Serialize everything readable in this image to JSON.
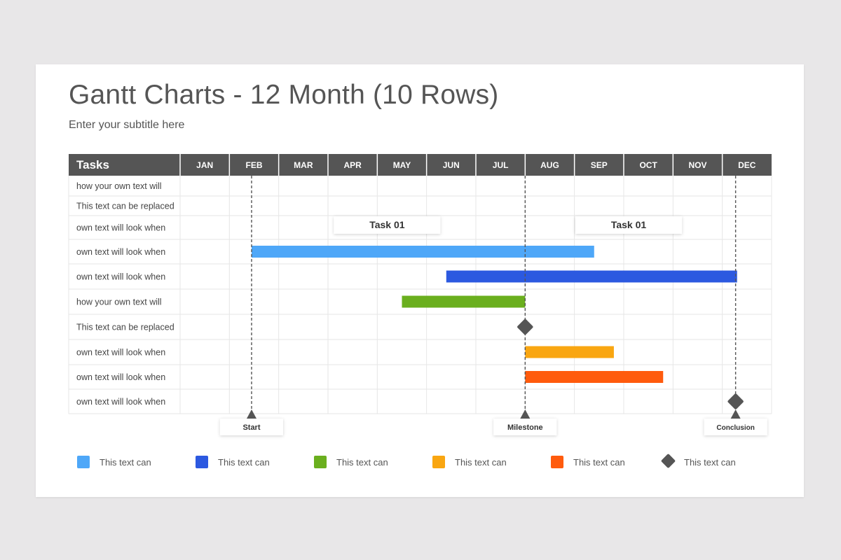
{
  "title": "Gantt Charts - 12 Month (10 Rows)",
  "subtitle": "Enter your subtitle here",
  "colors": {
    "header_bg": "#555555",
    "header_text": "#ffffff",
    "grid": "#e6e6e6",
    "row_text": "#444444",
    "marker": "#555555"
  },
  "chart_data": {
    "type": "gantt",
    "tasks_header": "Tasks",
    "months": [
      "JAN",
      "FEB",
      "MAR",
      "APR",
      "MAY",
      "JUN",
      "JUL",
      "AUG",
      "SEP",
      "OCT",
      "NOV",
      "DEC"
    ],
    "rows": [
      "how your own text will",
      "This text can be replaced",
      "own text will look when",
      "own text will look when",
      "own text will look when",
      "how your own text will",
      "This text can be replaced",
      "own text will look when",
      "own text will look when",
      "own text will look when"
    ],
    "callouts": [
      {
        "label": "Task 01",
        "row": 2,
        "center_month": 4.2
      },
      {
        "label": "Task 01",
        "row": 2,
        "center_month": 9.1
      }
    ],
    "bars": [
      {
        "row": 3,
        "start": 1.45,
        "end": 8.4,
        "color": "#4ea7f8"
      },
      {
        "row": 4,
        "start": 5.4,
        "end": 11.3,
        "color": "#2c59e0"
      },
      {
        "row": 5,
        "start": 4.5,
        "end": 7.0,
        "color": "#6aaf1e"
      },
      {
        "row": 7,
        "start": 7.0,
        "end": 8.8,
        "color": "#f9a611"
      },
      {
        "row": 8,
        "start": 7.0,
        "end": 9.8,
        "color": "#ff5b0d"
      }
    ],
    "milestones": [
      {
        "row": 6,
        "month": 7.0
      },
      {
        "row": 9,
        "month": 11.27
      }
    ],
    "markers": [
      {
        "label": "Start",
        "month": 1.45
      },
      {
        "label": "Milestone",
        "month": 7.0
      },
      {
        "label": "Conclusion",
        "month": 11.27
      }
    ]
  },
  "legend": [
    {
      "label": "This text can",
      "color": "#4ea7f8",
      "shape": "square"
    },
    {
      "label": "This text can",
      "color": "#2c59e0",
      "shape": "square"
    },
    {
      "label": "This text can",
      "color": "#6aaf1e",
      "shape": "square"
    },
    {
      "label": "This text can",
      "color": "#f9a611",
      "shape": "square"
    },
    {
      "label": "This text can",
      "color": "#ff5b0d",
      "shape": "square"
    },
    {
      "label": "This text can",
      "color": "#555555",
      "shape": "diamond"
    }
  ]
}
